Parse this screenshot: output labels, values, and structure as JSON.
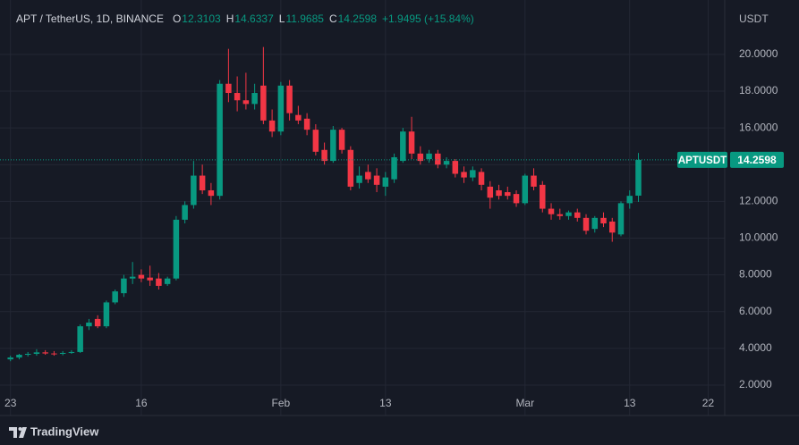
{
  "chart_data": {
    "type": "candlestick",
    "symbol_title": "APT / TetherUS, 1D, BINANCE",
    "ohlc_legend": [
      {
        "key": "O",
        "value": "12.3103"
      },
      {
        "key": "H",
        "value": "14.6337"
      },
      {
        "key": "L",
        "value": "11.9685"
      },
      {
        "key": "C",
        "value": "14.2598"
      }
    ],
    "change_text": "+1.9495 (+15.84%)",
    "currency_label": "USDT",
    "price_badge": {
      "symbol": "APTUSDT",
      "value": "14.2598"
    },
    "brand": "TradingView",
    "up_color": "#089981",
    "down_color": "#f23645",
    "grid": true,
    "x": [
      0,
      1,
      2,
      3,
      4,
      5,
      6,
      7,
      8,
      9,
      10,
      11,
      12,
      13,
      14,
      15,
      16,
      17,
      18,
      19,
      20,
      21,
      22,
      23,
      24,
      25,
      26,
      27,
      28,
      29,
      30,
      31,
      32,
      33,
      34,
      35,
      36,
      37,
      38,
      39,
      40,
      41,
      42,
      43,
      44,
      45,
      46,
      47,
      48,
      49,
      50,
      51,
      52,
      53,
      54,
      55,
      56,
      57,
      58,
      59,
      60,
      61,
      62,
      63,
      64,
      65,
      66,
      67,
      68,
      69,
      70,
      71,
      72
    ],
    "open": [
      3.4,
      3.5,
      3.65,
      3.7,
      3.78,
      3.72,
      3.7,
      3.75,
      3.8,
      5.2,
      5.6,
      5.2,
      6.5,
      7.0,
      7.8,
      8.0,
      7.85,
      7.8,
      7.5,
      7.8,
      11.0,
      11.8,
      13.4,
      12.6,
      12.3,
      18.4,
      17.9,
      17.5,
      17.3,
      18.3,
      16.4,
      15.8,
      18.3,
      16.7,
      16.5,
      15.9,
      14.8,
      14.2,
      15.9,
      14.8,
      13.0,
      13.6,
      13.4,
      12.8,
      13.2,
      14.2,
      15.8,
      14.6,
      14.3,
      14.6,
      14.0,
      14.2,
      13.6,
      13.3,
      13.6,
      12.8,
      12.6,
      12.5,
      12.4,
      11.9,
      13.4,
      12.9,
      11.6,
      11.3,
      11.2,
      11.4,
      11.1,
      10.5,
      11.1,
      10.9,
      10.2,
      11.9,
      12.3103
    ],
    "high": [
      3.6,
      3.7,
      3.8,
      3.95,
      3.9,
      3.85,
      3.85,
      3.9,
      5.3,
      5.6,
      5.8,
      6.6,
      7.2,
      8.0,
      8.7,
      8.3,
      8.5,
      8.1,
      7.9,
      11.2,
      12.0,
      14.2,
      14.0,
      13.0,
      18.6,
      20.3,
      18.8,
      19.0,
      18.4,
      20.4,
      17.0,
      18.5,
      18.6,
      17.2,
      16.8,
      16.2,
      15.2,
      16.1,
      16.0,
      15.0,
      13.9,
      14.0,
      13.8,
      13.6,
      14.6,
      16.0,
      16.6,
      15.0,
      14.8,
      14.8,
      14.4,
      14.3,
      13.9,
      13.9,
      13.8,
      13.1,
      12.9,
      12.8,
      12.6,
      13.5,
      13.8,
      13.1,
      11.9,
      11.6,
      11.5,
      11.6,
      11.3,
      11.2,
      11.4,
      11.1,
      12.0,
      12.6,
      14.6337
    ],
    "low": [
      3.3,
      3.4,
      3.55,
      3.6,
      3.65,
      3.6,
      3.62,
      3.7,
      3.75,
      5.0,
      5.1,
      5.1,
      6.4,
      6.8,
      7.5,
      7.6,
      7.4,
      7.2,
      7.4,
      7.7,
      10.8,
      11.6,
      12.4,
      11.8,
      12.1,
      17.4,
      16.9,
      17.0,
      17.0,
      16.2,
      15.5,
      15.6,
      16.4,
      16.2,
      15.6,
      14.5,
      14.0,
      14.1,
      14.6,
      12.6,
      12.7,
      13.0,
      12.5,
      12.3,
      13.0,
      14.1,
      14.3,
      14.0,
      14.1,
      13.8,
      13.8,
      13.3,
      13.0,
      13.1,
      12.6,
      11.6,
      12.1,
      12.1,
      11.7,
      11.8,
      12.6,
      11.4,
      11.0,
      11.0,
      11.0,
      10.9,
      10.2,
      10.3,
      10.6,
      9.8,
      10.1,
      11.6,
      11.9685
    ],
    "close": [
      3.5,
      3.65,
      3.7,
      3.78,
      3.72,
      3.7,
      3.75,
      3.8,
      5.2,
      5.4,
      5.2,
      6.5,
      7.1,
      7.8,
      7.9,
      7.8,
      7.7,
      7.4,
      7.8,
      11.0,
      11.8,
      13.4,
      12.6,
      12.3,
      18.4,
      17.9,
      17.5,
      17.3,
      17.9,
      16.4,
      15.8,
      18.3,
      16.8,
      16.4,
      15.9,
      14.7,
      14.2,
      15.9,
      14.8,
      12.8,
      13.4,
      13.2,
      12.9,
      13.3,
      14.4,
      15.8,
      14.6,
      14.2,
      14.6,
      14.0,
      14.2,
      13.5,
      13.3,
      13.7,
      12.9,
      12.2,
      12.3,
      12.3,
      11.9,
      13.4,
      12.8,
      11.6,
      11.3,
      11.2,
      11.4,
      11.1,
      10.4,
      11.1,
      10.8,
      10.3,
      11.9,
      12.3,
      14.2598
    ],
    "xlim": [
      -1.2,
      81.9
    ],
    "xticks": [
      {
        "value": 0,
        "label": "23"
      },
      {
        "value": 15,
        "label": "16"
      },
      {
        "value": 31,
        "label": "Feb"
      },
      {
        "value": 43,
        "label": "13"
      },
      {
        "value": 59,
        "label": "Mar"
      },
      {
        "value": 71,
        "label": "13"
      },
      {
        "value": 80,
        "label": "22"
      }
    ],
    "ylim": [
      0.83,
      21.5
    ],
    "yticks": [
      {
        "value": 2,
        "label": "2.0000"
      },
      {
        "value": 4,
        "label": "4.0000"
      },
      {
        "value": 6,
        "label": "6.0000"
      },
      {
        "value": 8,
        "label": "8.0000"
      },
      {
        "value": 10,
        "label": "10.0000"
      },
      {
        "value": 12,
        "label": "12.0000"
      },
      {
        "value": 14,
        "label": "14.0000"
      },
      {
        "value": 16,
        "label": "16.0000"
      },
      {
        "value": 18,
        "label": "18.0000"
      },
      {
        "value": 20,
        "label": "20.0000"
      }
    ]
  }
}
